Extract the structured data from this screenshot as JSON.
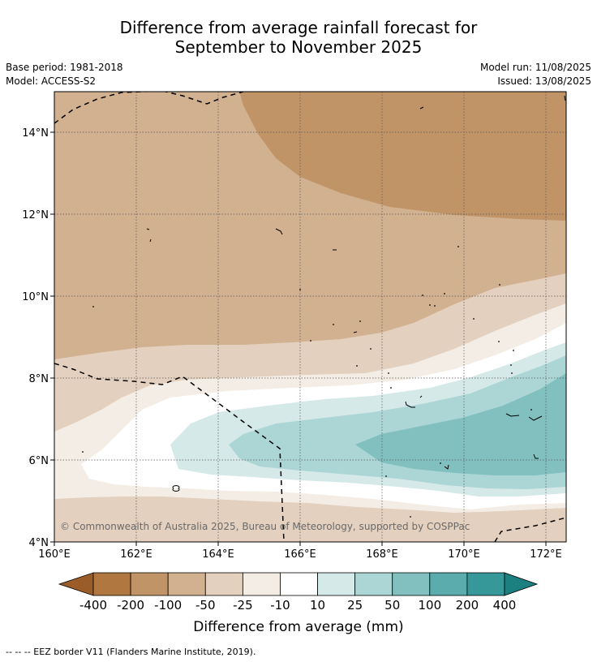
{
  "title": {
    "line1": "Difference from average rainfall forecast for",
    "line2": "September to November 2025"
  },
  "meta": {
    "base_period": "Base period: 1981-2018",
    "model": "Model: ACCESS-S2",
    "model_run": "Model run: 11/08/2025",
    "issued": "Issued: 13/08/2025"
  },
  "map": {
    "lon_range": [
      160,
      172.5
    ],
    "lat_range": [
      4,
      15
    ],
    "x_ticks": [
      "160°E",
      "162°E",
      "164°E",
      "166°E",
      "168°E",
      "170°E",
      "172°E"
    ],
    "y_ticks": [
      "4°N",
      "6°N",
      "8°N",
      "10°N",
      "12°N",
      "14°N"
    ],
    "copyright": "© Commonwealth of Australia 2025, Bureau of Meteorology, supported by COSPPac"
  },
  "colorbar": {
    "labels": [
      "-400",
      "-200",
      "-100",
      "-50",
      "-25",
      "-10",
      "10",
      "25",
      "50",
      "100",
      "200",
      "400"
    ],
    "colors": [
      "#9a5c28",
      "#b07840",
      "#c19468",
      "#d1b190",
      "#e3d0be",
      "#f4ede6",
      "#ffffff",
      "#d5e9e8",
      "#acd6d6",
      "#82c0c0",
      "#5aacad",
      "#369898",
      "#1d8080"
    ],
    "title": "Difference from average (mm)"
  },
  "footnote": "--  --  -- EEZ border V11 (Flanders Marine Institute, 2019)."
}
